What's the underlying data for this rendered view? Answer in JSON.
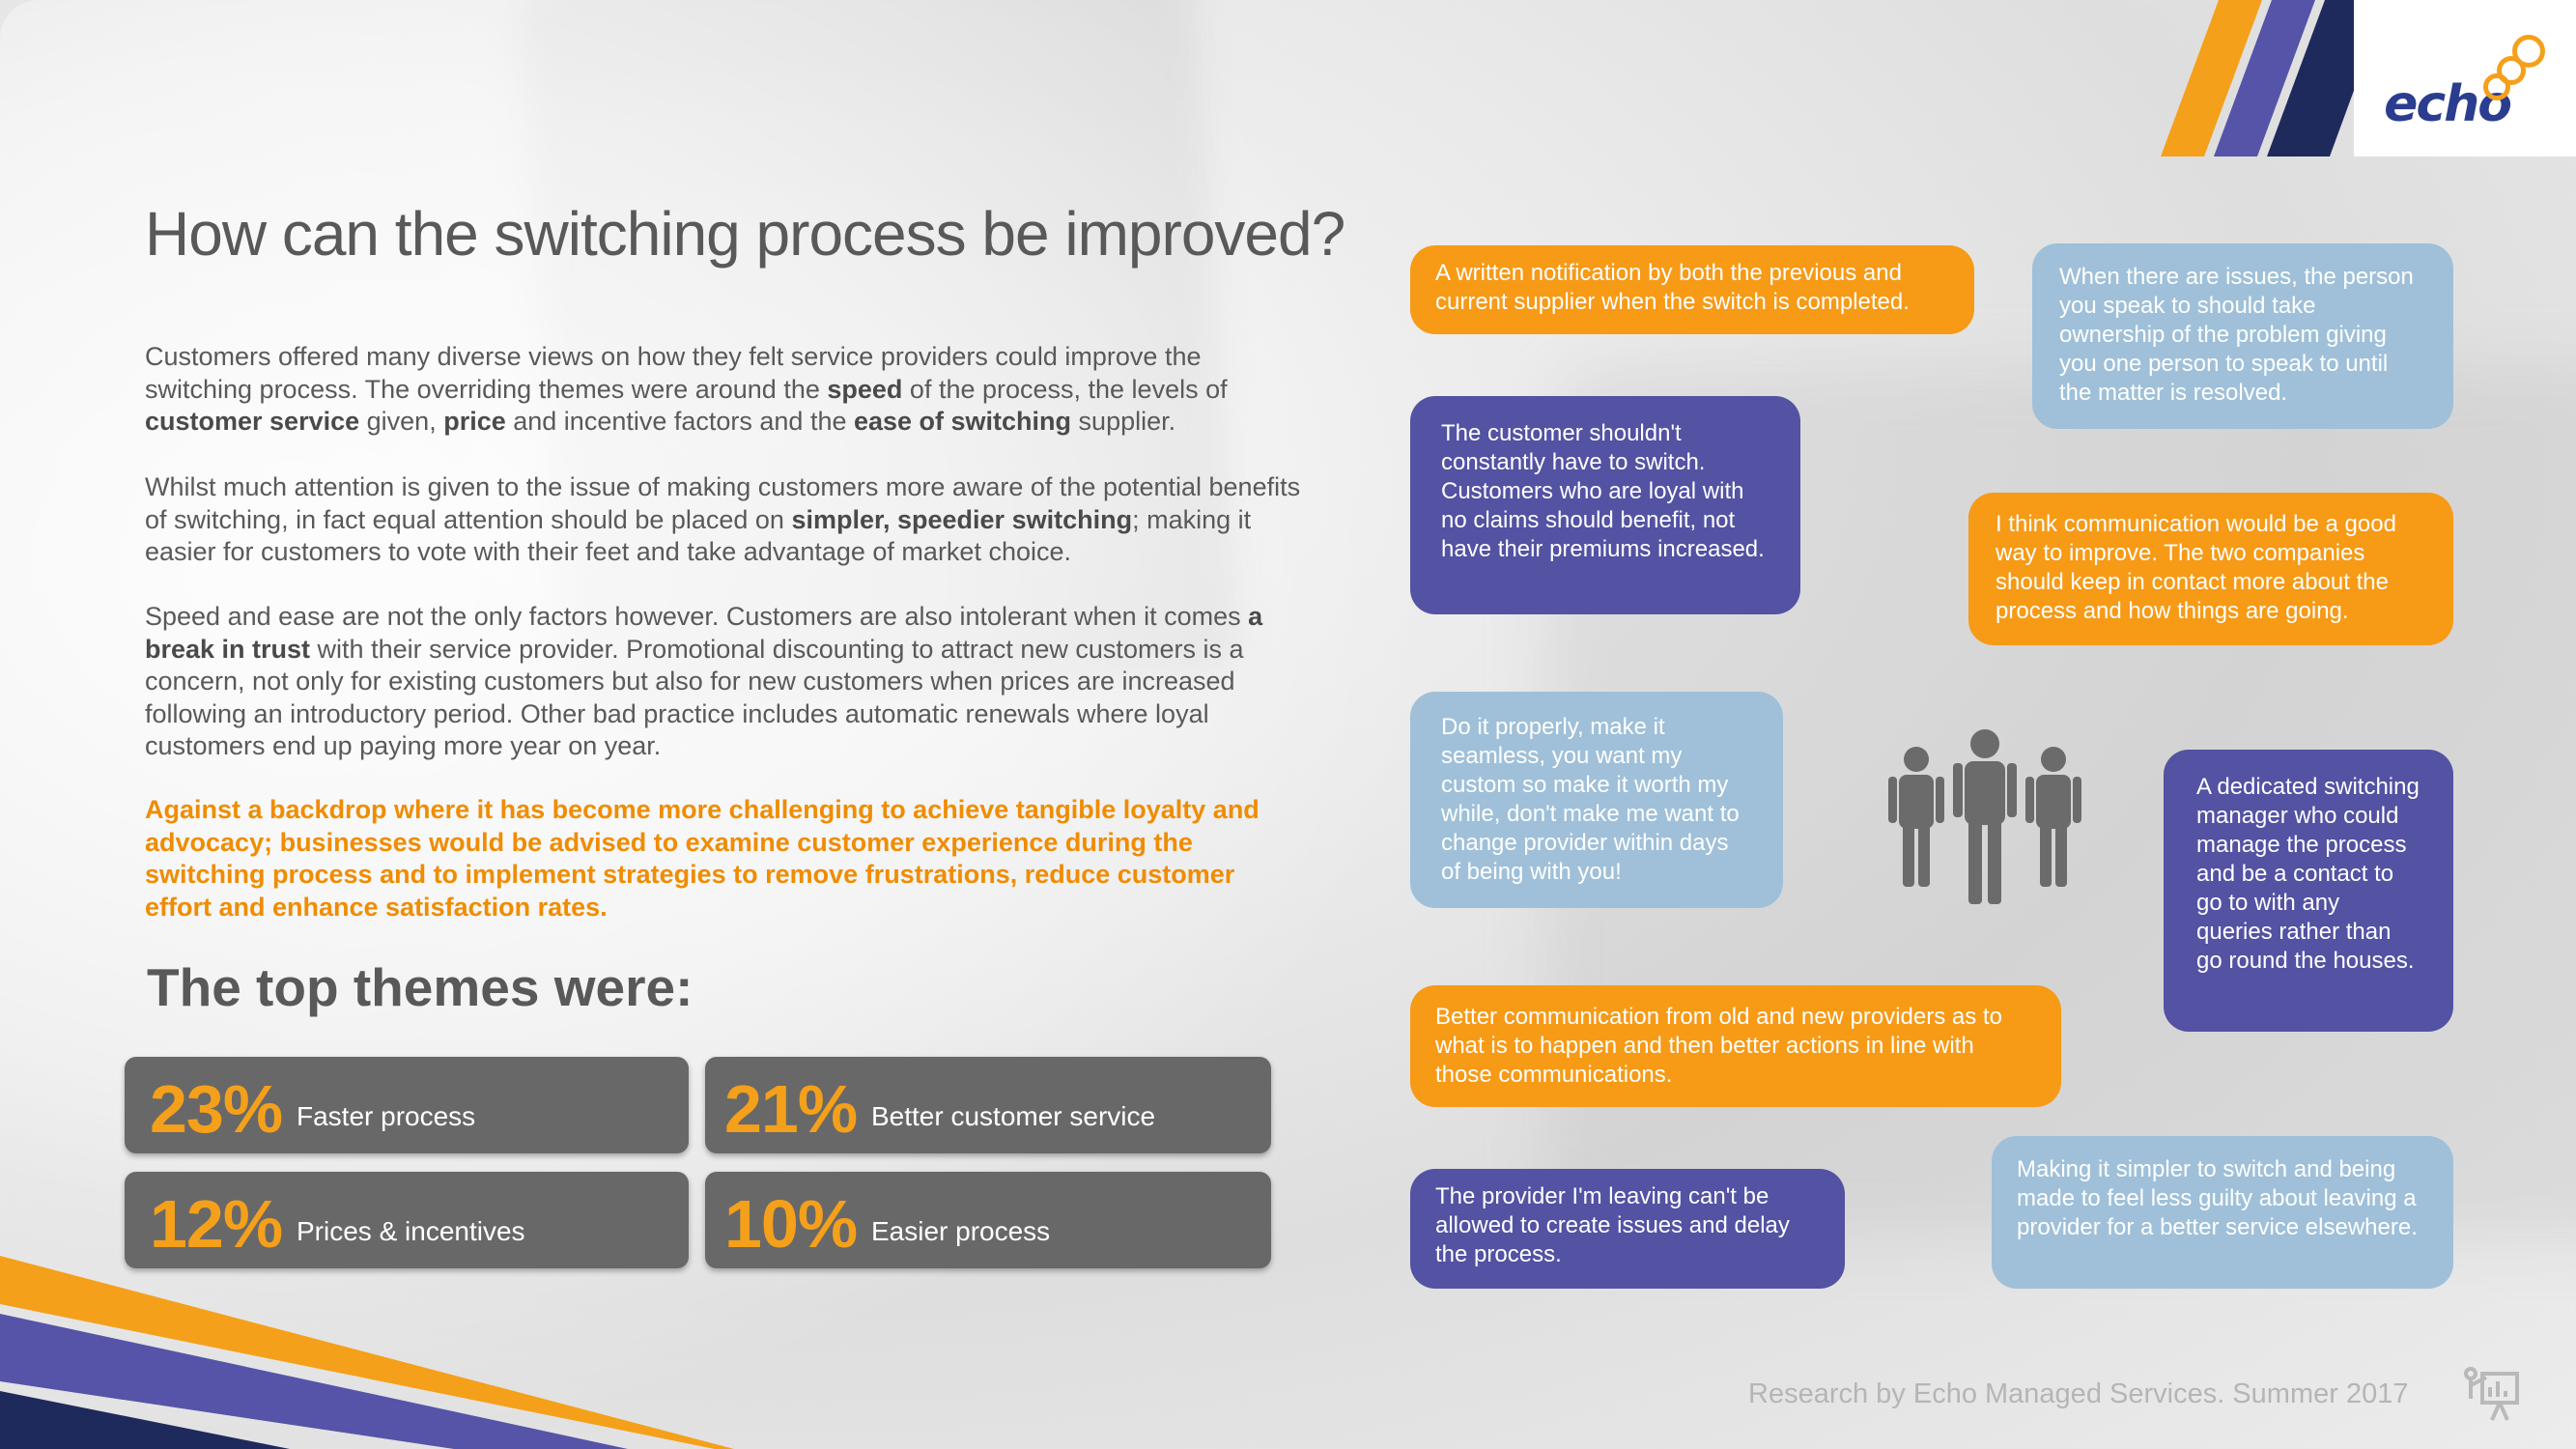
{
  "title": "How can the switching process be improved?",
  "paragraphs": {
    "p1": {
      "a": "Customers offered many diverse views on how they felt service providers could improve the switching process.  The overriding themes were around the ",
      "b1": "speed",
      "c": " of the process, the levels of ",
      "b2": "customer service",
      "d": " given, ",
      "b3": "price",
      "e": " and incentive factors and the ",
      "b4": "ease of switching",
      "f": " supplier."
    },
    "p2": {
      "a": "Whilst much attention is given to the issue of making customers more aware of the potential benefits of switching, in fact equal attention should be placed on ",
      "b1": "simpler, speedier switching",
      "c": "; making it easier for customers to vote with their feet and take advantage of market choice."
    },
    "p3": {
      "a": "Speed and ease are not the only factors however. Customers are also intolerant when it comes ",
      "b1": "a break in trust",
      "c": " with their service provider.  Promotional discounting to attract new customers is a concern, not only for existing customers but also for new customers when prices are increased following an introductory period.  Other bad practice includes automatic renewals where loyal customers end up paying more year on year."
    },
    "p4": "Against a backdrop where it has become more challenging to achieve tangible loyalty and advocacy; businesses would be advised to examine customer experience during the switching process and to implement strategies to remove frustrations, reduce customer effort and enhance satisfaction rates."
  },
  "themes_title": "The top themes were:",
  "themes": [
    {
      "pct": "23%",
      "label": "Faster process"
    },
    {
      "pct": "21%",
      "label": "Better customer service"
    },
    {
      "pct": "12%",
      "label": "Prices & incentives"
    },
    {
      "pct": "10%",
      "label": "Easier process"
    }
  ],
  "quotes": [
    "A written notification by both the previous and current supplier when the switch is completed.",
    "When there are issues,  the person you speak to should take ownership of the problem giving you one person to speak to until the matter is resolved.",
    "The customer shouldn't constantly have to switch. Customers who are loyal with no claims should benefit, not have their premiums increased.",
    "I think communication would be a good way to improve.  The two companies should keep in contact more about the process and how things are going.",
    "Do it properly, make it seamless, you want my custom so make it worth my while, don't make me want to change provider within days of being with you!",
    "A dedicated switching manager who could manage the process and be a contact to go to with any queries rather than go round the houses.",
    "Better communication from old and new providers as to what is to happen and then better actions in line with those communications.",
    "The provider I'm leaving can't be allowed to create issues and delay the process.",
    "Making it simpler to switch and being made to feel less guilty about leaving a provider for a better service elsewhere."
  ],
  "logo": {
    "text": "echo"
  },
  "footer": "Research by Echo Managed Services. Summer 2017",
  "colors": {
    "orange": "#f79a16",
    "purple": "#5352a3",
    "light_blue": "#9fc0d8",
    "navy": "#1f2a5c",
    "stat_box": "#686868",
    "text_gray": "#595959"
  },
  "icons": [
    "people-group-icon",
    "presenter-icon"
  ]
}
